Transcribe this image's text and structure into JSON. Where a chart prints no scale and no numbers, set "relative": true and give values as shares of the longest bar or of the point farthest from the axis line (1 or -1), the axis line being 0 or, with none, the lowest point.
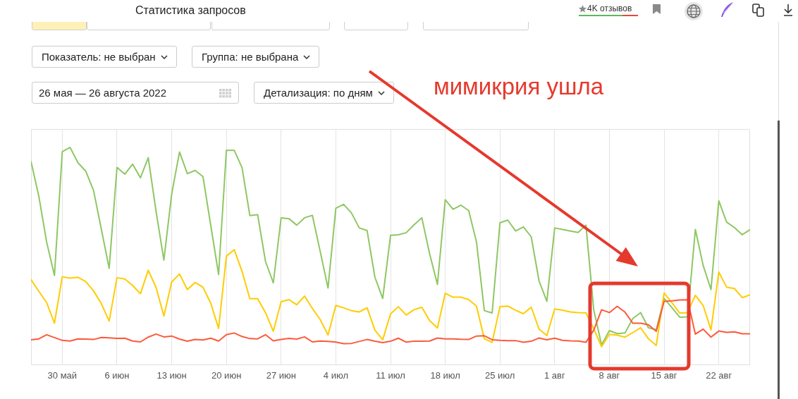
{
  "chart_data": {
    "type": "line",
    "title": "Статистика запросов",
    "relative": true,
    "grid": "x",
    "annotations": [
      "4K отзывов",
      "Показатель: не выбран",
      "Группа: не выбрана",
      "26 мая — 26 августа 2022",
      "Детализация: по дням",
      "мимикрия ушла"
    ],
    "xlim": [
      "2022-05-26",
      "2022-08-26"
    ],
    "xticks": [
      {
        "value": "2022-05-30",
        "label": "30 май"
      },
      {
        "value": "2022-06-06",
        "label": "6 июн"
      },
      {
        "value": "2022-06-13",
        "label": "13 июн"
      },
      {
        "value": "2022-06-20",
        "label": "20 июн"
      },
      {
        "value": "2022-06-27",
        "label": "27 июн"
      },
      {
        "value": "2022-07-04",
        "label": "4 июл"
      },
      {
        "value": "2022-07-11",
        "label": "11 июл"
      },
      {
        "value": "2022-07-18",
        "label": "18 июл"
      },
      {
        "value": "2022-07-25",
        "label": "25 июл"
      },
      {
        "value": "2022-08-01",
        "label": "1 авг"
      },
      {
        "value": "2022-08-08",
        "label": "8 авг"
      },
      {
        "value": "2022-08-15",
        "label": "15 авг"
      },
      {
        "value": "2022-08-22",
        "label": "22 авг"
      }
    ],
    "x": [
      "2022-05-26",
      "2022-05-27",
      "2022-05-28",
      "2022-05-29",
      "2022-05-30",
      "2022-05-31",
      "2022-06-01",
      "2022-06-02",
      "2022-06-03",
      "2022-06-04",
      "2022-06-05",
      "2022-06-06",
      "2022-06-07",
      "2022-06-08",
      "2022-06-09",
      "2022-06-10",
      "2022-06-11",
      "2022-06-12",
      "2022-06-13",
      "2022-06-14",
      "2022-06-15",
      "2022-06-16",
      "2022-06-17",
      "2022-06-18",
      "2022-06-19",
      "2022-06-20",
      "2022-06-21",
      "2022-06-22",
      "2022-06-23",
      "2022-06-24",
      "2022-06-25",
      "2022-06-26",
      "2022-06-27",
      "2022-06-28",
      "2022-06-29",
      "2022-06-30",
      "2022-07-01",
      "2022-07-02",
      "2022-07-03",
      "2022-07-04",
      "2022-07-05",
      "2022-07-06",
      "2022-07-07",
      "2022-07-08",
      "2022-07-09",
      "2022-07-10",
      "2022-07-11",
      "2022-07-12",
      "2022-07-13",
      "2022-07-14",
      "2022-07-15",
      "2022-07-16",
      "2022-07-17",
      "2022-07-18",
      "2022-07-19",
      "2022-07-20",
      "2022-07-21",
      "2022-07-22",
      "2022-07-23",
      "2022-07-24",
      "2022-07-25",
      "2022-07-26",
      "2022-07-27",
      "2022-07-28",
      "2022-07-29",
      "2022-07-30",
      "2022-07-31",
      "2022-08-01",
      "2022-08-02",
      "2022-08-03",
      "2022-08-04",
      "2022-08-05",
      "2022-08-06",
      "2022-08-07",
      "2022-08-08",
      "2022-08-09",
      "2022-08-10",
      "2022-08-11",
      "2022-08-12",
      "2022-08-13",
      "2022-08-14",
      "2022-08-15",
      "2022-08-16",
      "2022-08-17",
      "2022-08-18",
      "2022-08-19",
      "2022-08-20",
      "2022-08-21",
      "2022-08-22",
      "2022-08-23",
      "2022-08-24",
      "2022-08-25",
      "2022-08-26"
    ],
    "series": [
      {
        "color": "#8ec763",
        "values": [
          0.935,
          0.775,
          0.564,
          0.41,
          0.981,
          1,
          0.93,
          0.891,
          0.802,
          0.623,
          0.443,
          0.908,
          0.877,
          0.923,
          0.86,
          0.953,
          0.705,
          0.481,
          0.786,
          0.979,
          0.879,
          0.894,
          0.866,
          0.64,
          0.415,
          0.987,
          0.987,
          0.907,
          0.686,
          0.69,
          0.475,
          0.376,
          0.676,
          0.672,
          0.642,
          0.676,
          0.687,
          0.521,
          0.352,
          0.72,
          0.738,
          0.698,
          0.629,
          0.617,
          0.402,
          0.304,
          0.595,
          0.598,
          0.607,
          0.643,
          0.676,
          0.51,
          0.369,
          0.759,
          0.715,
          0.734,
          0.709,
          0.564,
          0.248,
          0.237,
          0.653,
          0.665,
          0.615,
          0.634,
          0.588,
          0.385,
          0.291,
          0.629,
          0.622,
          0.615,
          0.608,
          0.642,
          0.252,
          0.09,
          0.156,
          0.142,
          0.145,
          0.212,
          0.239,
          0.169,
          0.16,
          0.304,
          0.262,
          0.218,
          0.219,
          0.622,
          0.456,
          0.345,
          0.754,
          0.656,
          0.631,
          0.598,
          0.621
        ]
      },
      {
        "color": "#ffcc00",
        "values": [
          0.391,
          0.337,
          0.285,
          0.19,
          0.404,
          0.398,
          0.402,
          0.382,
          0.339,
          0.28,
          0.2,
          0.4,
          0.394,
          0.364,
          0.326,
          0.434,
          0.355,
          0.223,
          0.38,
          0.417,
          0.345,
          0.378,
          0.356,
          0.282,
          0.166,
          0.499,
          0.529,
          0.429,
          0.303,
          0.303,
          0.239,
          0.153,
          0.289,
          0.299,
          0.275,
          0.315,
          0.258,
          0.207,
          0.136,
          0.272,
          0.261,
          0.248,
          0.242,
          0.261,
          0.158,
          0.114,
          0.233,
          0.266,
          0.228,
          0.252,
          0.264,
          0.202,
          0.168,
          0.328,
          0.31,
          0.31,
          0.299,
          0.269,
          0.118,
          0.102,
          0.266,
          0.269,
          0.25,
          0.234,
          0.264,
          0.163,
          0.133,
          0.256,
          0.25,
          0.242,
          0.239,
          0.238,
          0.165,
          0.082,
          0.139,
          0.135,
          0.126,
          0.147,
          0.169,
          0.118,
          0.088,
          0.329,
          0.285,
          0.237,
          0.239,
          0.319,
          0.272,
          0.159,
          0.426,
          0.356,
          0.35,
          0.308,
          0.321
        ]
      },
      {
        "color": "#fc5a3c",
        "values": [
          0.114,
          0.118,
          0.137,
          0.124,
          0.111,
          0.108,
          0.118,
          0.117,
          0.115,
          0.124,
          0.123,
          0.12,
          0.121,
          0.108,
          0.104,
          0.126,
          0.14,
          0.127,
          0.131,
          0.117,
          0.107,
          0.115,
          0.113,
          0.121,
          0.108,
          0.137,
          0.145,
          0.129,
          0.119,
          0.118,
          0.137,
          0.109,
          0.115,
          0.12,
          0.117,
          0.127,
          0.104,
          0.108,
          0.106,
          0.103,
          0.096,
          0.097,
          0.106,
          0.115,
          0.107,
          0.101,
          0.107,
          0.121,
          0.103,
          0.107,
          0.107,
          0.108,
          0.122,
          0.118,
          0.118,
          0.116,
          0.115,
          0.131,
          0.132,
          0.114,
          0.111,
          0.11,
          0.11,
          0.102,
          0.107,
          0.122,
          0.114,
          0.121,
          0.111,
          0.109,
          0.108,
          0.102,
          0.158,
          0.252,
          0.239,
          0.268,
          0.241,
          0.19,
          0.19,
          0.183,
          0.153,
          0.291,
          0.293,
          0.297,
          0.298,
          0.14,
          0.163,
          0.126,
          0.154,
          0.148,
          0.15,
          0.141,
          0.141
        ]
      }
    ]
  }
}
